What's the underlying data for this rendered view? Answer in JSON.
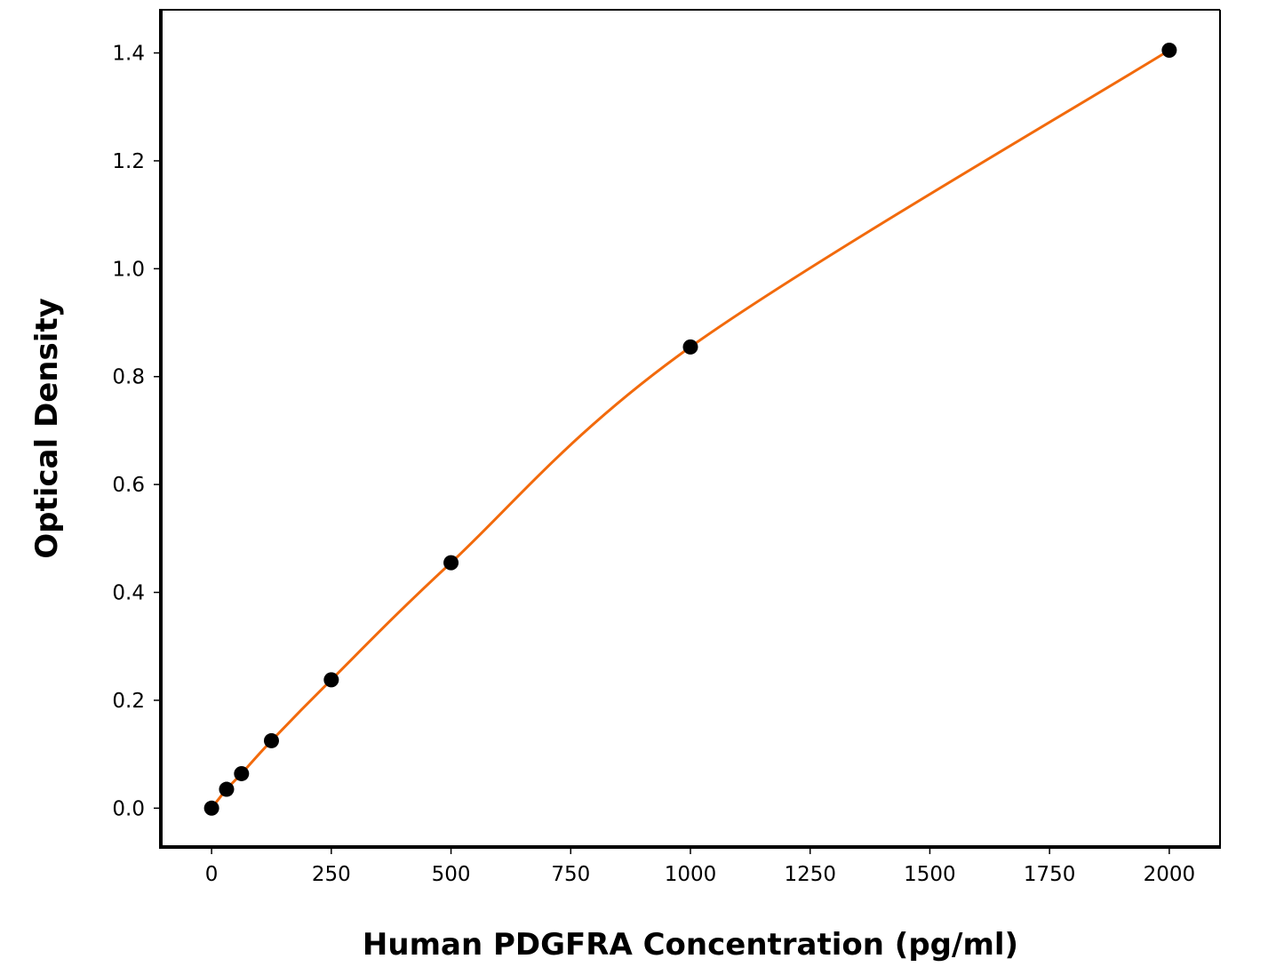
{
  "chart_data": {
    "type": "line",
    "title": "",
    "xlabel": "Human PDGFRA Concentration (pg/ml)",
    "ylabel": "Optical Density",
    "xlim": [
      -106,
      2106
    ],
    "ylim": [
      -0.072,
      1.48
    ],
    "xticks": [
      0,
      250,
      500,
      750,
      1000,
      1250,
      1500,
      1750,
      2000
    ],
    "xtick_labels": [
      "0",
      "250",
      "500",
      "750",
      "1000",
      "1250",
      "1500",
      "1750",
      "2000"
    ],
    "yticks": [
      0.0,
      0.2,
      0.4,
      0.6,
      0.8,
      1.0,
      1.2,
      1.4
    ],
    "ytick_labels": [
      "0.0",
      "0.2",
      "0.4",
      "0.6",
      "0.8",
      "1.0",
      "1.2",
      "1.4"
    ],
    "grid": false,
    "series": [
      {
        "x": [
          0,
          31.25,
          62.5,
          125,
          250,
          500,
          1000,
          2000
        ],
        "y": [
          0.0,
          0.035,
          0.064,
          0.125,
          0.238,
          0.455,
          0.855,
          1.405
        ],
        "marker_color": "#000000",
        "line_color": "#f26a0c"
      }
    ]
  }
}
